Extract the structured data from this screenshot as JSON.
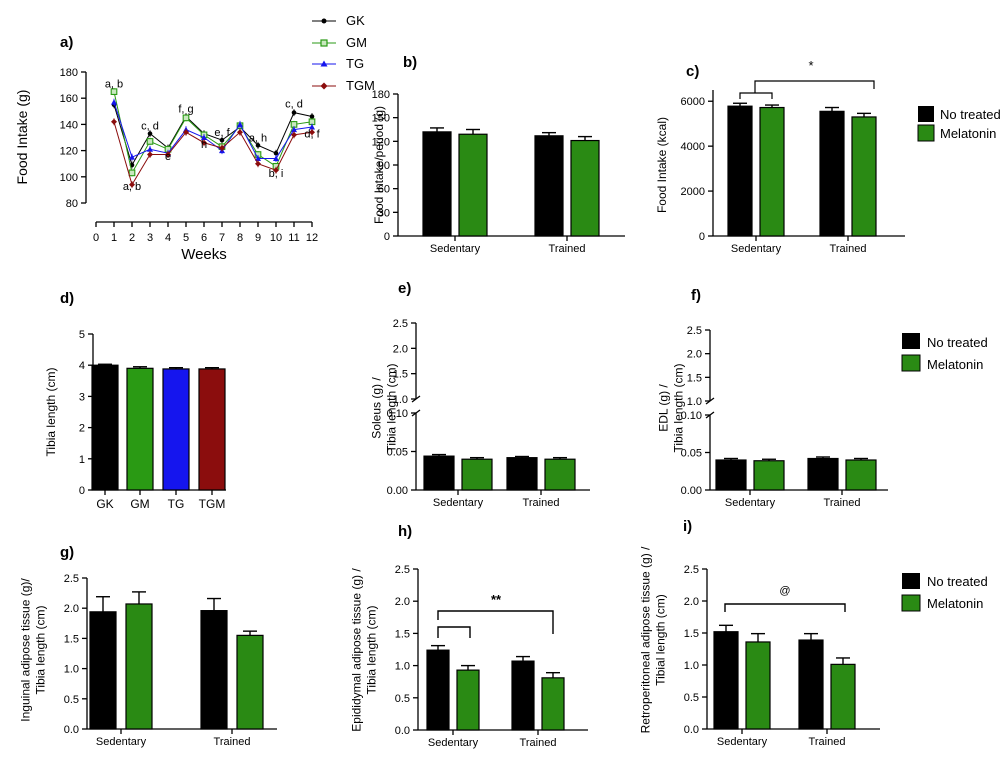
{
  "colors": {
    "no_treated": "#000000",
    "melatonin": "#2a8a14",
    "GK": "#000000",
    "GM": "#2a9a14",
    "TG": "#1515ee",
    "TGM": "#8b0d0d",
    "axis": "#000000"
  },
  "legend_top": {
    "entries": [
      {
        "label": "GK",
        "marker": "circle"
      },
      {
        "label": "GM",
        "marker": "square"
      },
      {
        "label": "TG",
        "marker": "triangle"
      },
      {
        "label": "TGM",
        "marker": "diamond"
      }
    ]
  },
  "legend_bars": {
    "no_treated": "No treated",
    "melatonin": "Melatonin"
  },
  "chart_data": [
    {
      "id": "a",
      "panel": "a)",
      "type": "line",
      "xlabel": "Weeks",
      "ylabel": "Food Intake (g)",
      "x": [
        1,
        2,
        3,
        4,
        5,
        6,
        7,
        8,
        9,
        10,
        11,
        12
      ],
      "x_ticks": [
        "0",
        "1",
        "2",
        "3",
        "4",
        "5",
        "6",
        "7",
        "8",
        "9",
        "10",
        "11",
        "12"
      ],
      "ylim": [
        80,
        180
      ],
      "y_ticks": [
        "80",
        "100",
        "120",
        "140",
        "160",
        "180"
      ],
      "series": [
        {
          "name": "GK",
          "values": [
            155,
            109,
            133,
            122,
            146,
            133,
            128,
            138,
            124,
            118,
            149,
            146
          ]
        },
        {
          "name": "GM",
          "values": [
            165,
            103,
            127,
            121,
            145,
            132,
            123,
            139,
            117,
            108,
            140,
            142
          ]
        },
        {
          "name": "TG",
          "values": [
            157,
            115,
            121,
            118,
            136,
            130,
            120,
            140,
            114,
            114,
            136,
            138
          ]
        },
        {
          "name": "TGM",
          "values": [
            142,
            94,
            117,
            117,
            134,
            126,
            122,
            134,
            110,
            105,
            132,
            134
          ]
        }
      ],
      "annotations": [
        {
          "text": "a, b",
          "x": 1,
          "y": 168
        },
        {
          "text": "a, b",
          "x": 2,
          "y": 90
        },
        {
          "text": "c, d",
          "x": 3,
          "y": 136
        },
        {
          "text": "e",
          "x": 4,
          "y": 113
        },
        {
          "text": "f, g",
          "x": 5,
          "y": 149
        },
        {
          "text": "h",
          "x": 6,
          "y": 122
        },
        {
          "text": "e, f",
          "x": 7,
          "y": 131
        },
        {
          "text": "a, h",
          "x": 9,
          "y": 127
        },
        {
          "text": "b, i",
          "x": 10,
          "y": 100
        },
        {
          "text": "c, d",
          "x": 11,
          "y": 153
        },
        {
          "text": "d, f",
          "x": 12,
          "y": 130
        }
      ]
    },
    {
      "id": "b",
      "panel": "b)",
      "type": "bar",
      "ylabel": "Food Intake/period (g)",
      "categories": [
        "Sedentary",
        "Trained"
      ],
      "ylim": [
        0,
        180
      ],
      "y_ticks": [
        "0",
        "30",
        "60",
        "90",
        "120",
        "150",
        "180"
      ],
      "series": [
        {
          "key": "no_treated",
          "values": [
            132,
            127
          ],
          "errors": [
            5,
            4
          ]
        },
        {
          "key": "melatonin",
          "values": [
            129,
            121
          ],
          "errors": [
            6,
            5
          ]
        }
      ]
    },
    {
      "id": "c",
      "panel": "c)",
      "type": "bar",
      "ylabel": "Food Intake (kcal)",
      "categories": [
        "Sedentary",
        "Trained"
      ],
      "ylim": [
        0,
        6500
      ],
      "y_ticks": [
        "0",
        "2000",
        "4000",
        "6000"
      ],
      "series": [
        {
          "key": "no_treated",
          "values": [
            5780,
            5550
          ],
          "errors": [
            130,
            170
          ]
        },
        {
          "key": "melatonin",
          "values": [
            5720,
            5300
          ],
          "errors": [
            110,
            160
          ]
        }
      ],
      "significance": "*"
    },
    {
      "id": "d",
      "panel": "d)",
      "type": "bar",
      "ylabel": "Tibia length (cm)",
      "categories": [
        "GK",
        "GM",
        "TG",
        "TGM"
      ],
      "ylim": [
        0,
        5
      ],
      "y_ticks": [
        "0",
        "1",
        "2",
        "3",
        "4",
        "5"
      ],
      "values": [
        4.0,
        3.9,
        3.88,
        3.88
      ],
      "errors": [
        0.03,
        0.05,
        0.04,
        0.04
      ],
      "bar_colors": [
        "#000000",
        "#2a9a14",
        "#1515ee",
        "#8b0d0d"
      ]
    },
    {
      "id": "e",
      "panel": "e)",
      "type": "bar",
      "ylabel_lines": [
        "Soleus (g) /",
        "Tibia length (cm)"
      ],
      "categories": [
        "Sedentary",
        "Trained"
      ],
      "ylim": [
        0,
        0.1
      ],
      "y_ticks": [
        "0.00",
        "0.05",
        "0.10"
      ],
      "y_ticks_upper": [
        "1.0",
        "1.5",
        "2.0",
        "2.5"
      ],
      "series": [
        {
          "key": "no_treated",
          "values": [
            0.044,
            0.042
          ],
          "errors": [
            0.002,
            0.0015
          ]
        },
        {
          "key": "melatonin",
          "values": [
            0.04,
            0.04
          ],
          "errors": [
            0.002,
            0.002
          ]
        }
      ]
    },
    {
      "id": "f",
      "panel": "f)",
      "type": "bar",
      "ylabel_lines": [
        "EDL (g) /",
        "Tibia length (cm)"
      ],
      "categories": [
        "Sedentary",
        "Trained"
      ],
      "ylim": [
        0,
        0.1
      ],
      "y_ticks": [
        "0.00",
        "0.05",
        "0.10"
      ],
      "y_ticks_upper": [
        "1.0",
        "1.5",
        "2.0",
        "2.5"
      ],
      "series": [
        {
          "key": "no_treated",
          "values": [
            0.04,
            0.042
          ],
          "errors": [
            0.002,
            0.002
          ]
        },
        {
          "key": "melatonin",
          "values": [
            0.039,
            0.04
          ],
          "errors": [
            0.002,
            0.002
          ]
        }
      ]
    },
    {
      "id": "g",
      "panel": "g)",
      "type": "bar",
      "ylabel_lines": [
        "Inguinal adipose tissue (g)/",
        "Tibia length (cm)"
      ],
      "categories": [
        "Sedentary",
        "Trained"
      ],
      "ylim": [
        0,
        2.5
      ],
      "y_ticks": [
        "0.0",
        "0.5",
        "1.0",
        "1.5",
        "2.0",
        "2.5"
      ],
      "series": [
        {
          "key": "no_treated",
          "values": [
            1.94,
            1.96
          ],
          "errors": [
            0.25,
            0.2
          ]
        },
        {
          "key": "melatonin",
          "values": [
            2.07,
            1.55
          ],
          "errors": [
            0.2,
            0.07
          ]
        }
      ]
    },
    {
      "id": "h",
      "panel": "h)",
      "type": "bar",
      "ylabel_lines": [
        "Epididymal adipose tissue (g) /",
        "Tibia length (cm)"
      ],
      "categories": [
        "Sedentary",
        "Trained"
      ],
      "ylim": [
        0,
        2.5
      ],
      "y_ticks": [
        "0.0",
        "0.5",
        "1.0",
        "1.5",
        "2.0",
        "2.5"
      ],
      "series": [
        {
          "key": "no_treated",
          "values": [
            1.24,
            1.07
          ],
          "errors": [
            0.07,
            0.07
          ]
        },
        {
          "key": "melatonin",
          "values": [
            0.93,
            0.81
          ],
          "errors": [
            0.07,
            0.08
          ]
        }
      ],
      "significance": "**"
    },
    {
      "id": "i",
      "panel": "i)",
      "type": "bar",
      "ylabel_lines": [
        "Retroperitoneal adipose tissue (g) /",
        "Tibial length (cm)"
      ],
      "categories": [
        "Sedentary",
        "Trained"
      ],
      "ylim": [
        0,
        2.5
      ],
      "y_ticks": [
        "0.0",
        "0.5",
        "1.0",
        "1.5",
        "2.0",
        "2.5"
      ],
      "series": [
        {
          "key": "no_treated",
          "values": [
            1.52,
            1.39
          ],
          "errors": [
            0.1,
            0.1
          ]
        },
        {
          "key": "melatonin",
          "values": [
            1.36,
            1.01
          ],
          "errors": [
            0.13,
            0.1
          ]
        }
      ],
      "significance": "@"
    }
  ]
}
